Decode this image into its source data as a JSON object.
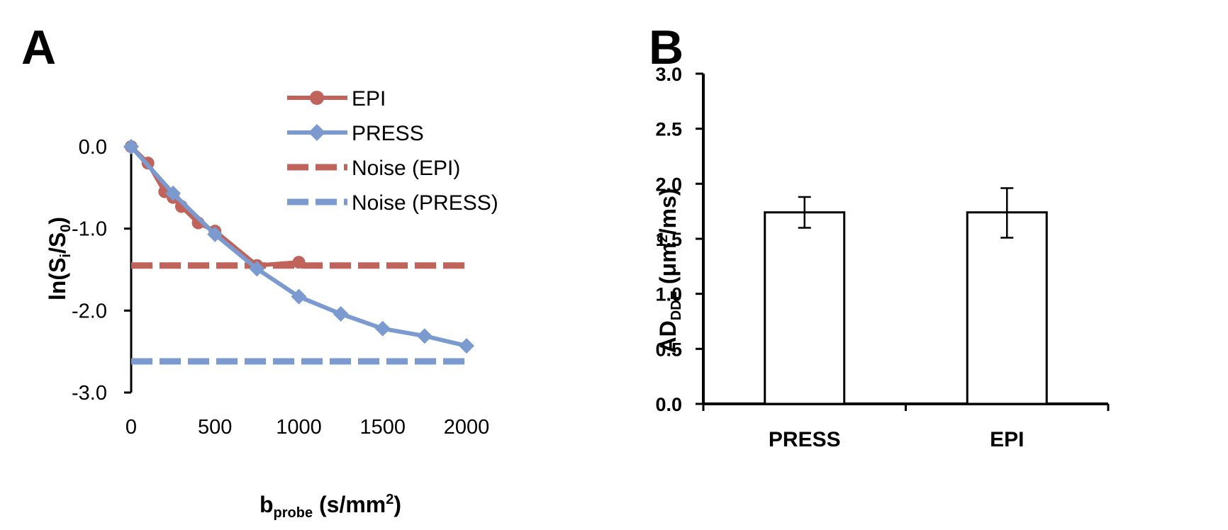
{
  "chart_data": [
    {
      "panel": "A",
      "type": "line",
      "title": "",
      "xlabel": {
        "main": "b",
        "sub": "probe",
        "rest": " (s/mm",
        "sup": "2",
        "close": ")"
      },
      "ylabel": {
        "pre": "ln(S",
        "sub1": "i",
        "mid": "/S",
        "sub2": "0",
        "close": ")"
      },
      "xlim": [
        0,
        2000
      ],
      "ylim": [
        -3.0,
        0.0
      ],
      "x_ticks": [
        0,
        500,
        1000,
        1500,
        2000
      ],
      "x_tick_labels": [
        "0",
        "500",
        "1000",
        "1500",
        "2000"
      ],
      "y_ticks": [
        0.0,
        -1.0,
        -2.0,
        -3.0
      ],
      "y_tick_labels": [
        "0.0",
        "-1.0",
        "-2.0",
        "-3.0"
      ],
      "series": [
        {
          "name": "EPI",
          "style": "solid",
          "marker": "circle",
          "color": "#c0635b",
          "x": [
            0,
            100,
            200,
            250,
            300,
            400,
            500,
            750,
            1000
          ],
          "y": [
            0.0,
            -0.2,
            -0.55,
            -0.62,
            -0.73,
            -0.93,
            -1.03,
            -1.45,
            -1.41
          ]
        },
        {
          "name": "PRESS",
          "style": "solid",
          "marker": "diamond",
          "color": "#7b9bd0",
          "x": [
            0,
            250,
            500,
            750,
            1000,
            1250,
            1500,
            1750,
            2000
          ],
          "y": [
            0.0,
            -0.57,
            -1.07,
            -1.49,
            -1.83,
            -2.04,
            -2.22,
            -2.31,
            -2.43
          ]
        },
        {
          "name": "Noise (EPI)",
          "style": "dashed",
          "color": "#c0635b",
          "x": [
            0,
            2000
          ],
          "y": [
            -1.45,
            -1.45
          ]
        },
        {
          "name": "Noise (PRESS)",
          "style": "dashed",
          "color": "#7b9bd0",
          "x": [
            0,
            2000
          ],
          "y": [
            -2.62,
            -2.62
          ]
        }
      ],
      "legend": {
        "placement": "top-right"
      }
    },
    {
      "panel": "B",
      "type": "bar",
      "title": "",
      "xlabel": "",
      "ylabel": {
        "main": "AD",
        "sub": "DDE",
        "rest": " (μm",
        "sup": "2",
        "close": "/ms)"
      },
      "categories": [
        "PRESS",
        "EPI"
      ],
      "values": [
        1.74,
        1.74
      ],
      "error_bars": [
        [
          1.6,
          1.88
        ],
        [
          1.51,
          1.96
        ]
      ],
      "ylim": [
        0.0,
        3.0
      ],
      "y_ticks": [
        0.0,
        0.5,
        1.0,
        1.5,
        2.0,
        2.5,
        3.0
      ],
      "y_tick_labels": [
        "0.0",
        "0.5",
        "1.0",
        "1.5",
        "2.0",
        "2.5",
        "3.0"
      ]
    }
  ],
  "panels": {
    "a_label": "A",
    "b_label": "B"
  }
}
